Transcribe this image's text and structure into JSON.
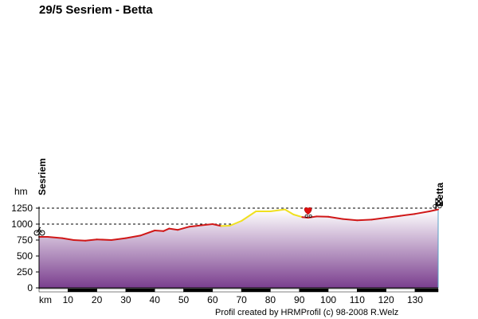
{
  "title": "29/5 Sesriem - Betta",
  "footer": "Profil created by HRMProfil (c) 98-2008 R.Welz",
  "chart_data": {
    "type": "area",
    "title": "29/5 Sesriem - Betta",
    "ylabel": "hm",
    "xlabel": "km",
    "xlim": [
      0,
      138
    ],
    "ylim": [
      0,
      1250
    ],
    "x_ticks": [
      10,
      20,
      30,
      40,
      50,
      60,
      70,
      80,
      90,
      100,
      110,
      120,
      130
    ],
    "y_ticks": [
      0,
      250,
      500,
      750,
      1000,
      1250
    ],
    "grid": "horizontal dashed lines at 1000 and 1250",
    "start_label": "Sesriem",
    "end_label": "Betta",
    "colors": {
      "uphill": "#f0e020",
      "route": "#d01818",
      "fill_top": "#ffffff",
      "fill_bottom": "#7a3e8e"
    },
    "x": [
      0,
      3,
      8,
      12,
      16,
      20,
      25,
      30,
      35,
      40,
      43,
      45,
      48,
      52,
      55,
      60,
      63,
      66,
      70,
      75,
      80,
      85,
      88,
      91,
      93,
      96,
      100,
      105,
      110,
      115,
      120,
      125,
      130,
      135,
      138
    ],
    "y": [
      800,
      800,
      780,
      750,
      740,
      760,
      750,
      780,
      820,
      900,
      890,
      930,
      910,
      960,
      975,
      1000,
      970,
      975,
      1050,
      1200,
      1200,
      1230,
      1150,
      1110,
      1100,
      1120,
      1115,
      1080,
      1060,
      1070,
      1100,
      1130,
      1160,
      1200,
      1230
    ],
    "uphill_x_ranges": [
      [
        62,
        91
      ]
    ],
    "markers": [
      {
        "type": "bicycle",
        "x": 0
      },
      {
        "type": "heart",
        "x": 93
      },
      {
        "type": "finish-flag",
        "x": 138
      }
    ]
  }
}
